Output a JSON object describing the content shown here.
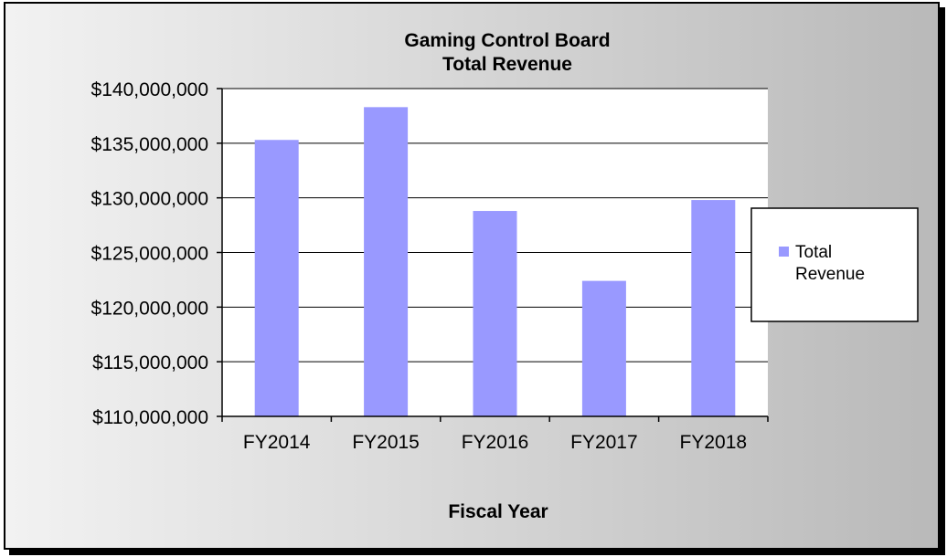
{
  "chart_data": {
    "type": "bar",
    "title": "Gaming Control Board",
    "subtitle": "Total Revenue",
    "xlabel": "Fiscal Year",
    "ylabel": "",
    "categories": [
      "FY2014",
      "FY2015",
      "FY2016",
      "FY2017",
      "FY2018"
    ],
    "series": [
      {
        "name": "Total Revenue",
        "values": [
          135300000,
          138300000,
          128800000,
          122400000,
          129800000
        ]
      }
    ],
    "ylim": [
      110000000,
      140000000
    ],
    "yticks": [
      110000000,
      115000000,
      120000000,
      125000000,
      130000000,
      135000000,
      140000000
    ],
    "ytick_labels": [
      "$110,000,000",
      "$115,000,000",
      "$120,000,000",
      "$125,000,000",
      "$130,000,000",
      "$135,000,000",
      "$140,000,000"
    ],
    "grid": true,
    "legend_position": "right",
    "legend_labels": [
      "Total",
      "Revenue"
    ],
    "colors": {
      "bar": "#9999ff",
      "plot_bg": "#ffffff",
      "grid": "#000000"
    }
  }
}
